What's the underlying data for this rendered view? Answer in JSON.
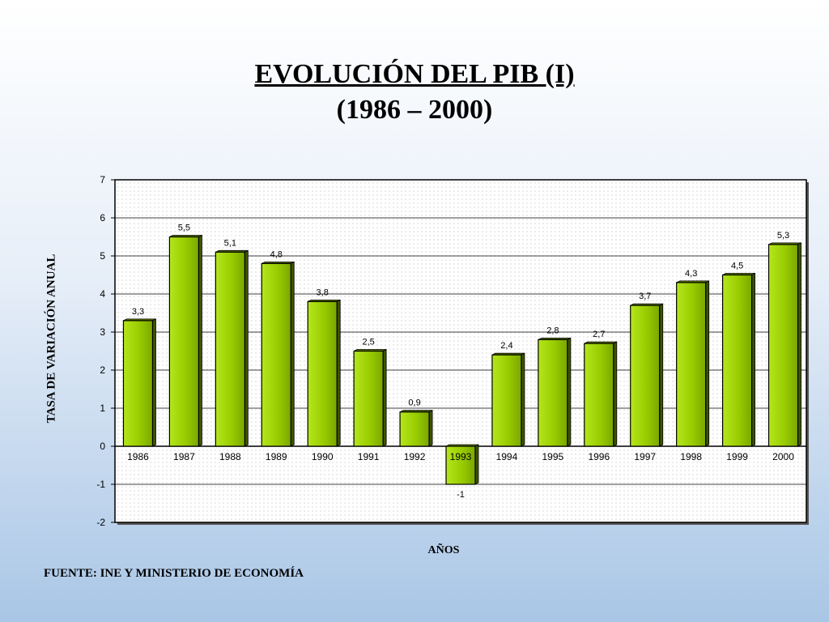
{
  "chart_data": {
    "type": "bar",
    "title": "EVOLUCIÓN DEL PIB (I)",
    "subtitle": "(1986 – 2000)",
    "xlabel": "AÑOS",
    "ylabel": "TASA DE VARIACIÓN ANUAL",
    "source": "FUENTE: INE Y MINISTERIO DE ECONOMÍA",
    "categories": [
      "1986",
      "1987",
      "1988",
      "1989",
      "1990",
      "1991",
      "1992",
      "1993",
      "1994",
      "1995",
      "1996",
      "1997",
      "1998",
      "1999",
      "2000"
    ],
    "values": [
      3.3,
      5.5,
      5.1,
      4.8,
      3.8,
      2.5,
      0.9,
      -1,
      2.4,
      2.8,
      2.7,
      3.7,
      4.3,
      4.5,
      5.3
    ],
    "data_labels": [
      "3,3",
      "5,5",
      "5,1",
      "4,8",
      "3,8",
      "2,5",
      "0,9",
      "-1",
      "2,4",
      "2,8",
      "2,7",
      "3,7",
      "4,3",
      "4,5",
      "5,3"
    ],
    "ylim": [
      -2,
      7
    ],
    "yticks": [
      -2,
      -1,
      0,
      1,
      2,
      3,
      4,
      5,
      6,
      7
    ],
    "grid": true,
    "legend": "none",
    "colors": {
      "bar": "#99cc00",
      "bar_dark": "#4d6600",
      "plot_bg": "#ffffff",
      "plot_dots": "#c8c8c8"
    }
  }
}
